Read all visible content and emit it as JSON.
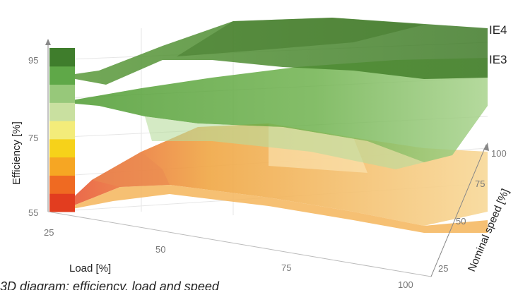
{
  "chart_data": {
    "type": "surface-3d",
    "caption": "3D diagram: efficiency, load and speed",
    "axes": {
      "efficiency": {
        "label": "Efficiency [%]",
        "ticks": [
          "95",
          "75",
          "55"
        ],
        "range": [
          55,
          95
        ]
      },
      "load": {
        "label": "Load [%]",
        "ticks": [
          "25",
          "50",
          "75",
          "100"
        ],
        "range": [
          25,
          100
        ]
      },
      "speed": {
        "label": "Nominal speed [%]",
        "ticks": [
          "25",
          "50",
          "75",
          "100"
        ],
        "range": [
          25,
          100
        ]
      }
    },
    "series": [
      {
        "name": "IE4",
        "color": "#4f8a2e"
      },
      {
        "name": "IE3",
        "color": "#7fb85a"
      }
    ],
    "color_scale": [
      "#e23d1f",
      "#ef6a22",
      "#f6a623",
      "#f6d21a",
      "#f3ec7a",
      "#c9e0a0",
      "#97c87a",
      "#5fa848",
      "#3f7d2c"
    ],
    "lower_surface_colors": [
      "#f0a33a",
      "#f7cf74",
      "#fbe2a6"
    ]
  }
}
